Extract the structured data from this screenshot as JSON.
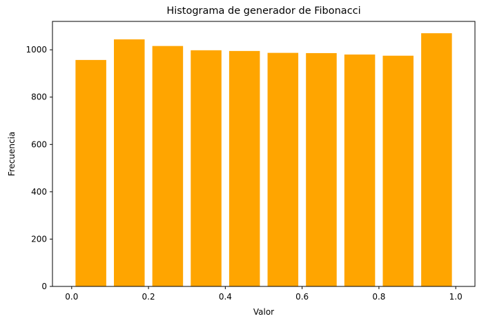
{
  "chart_data": {
    "type": "bar",
    "title": "Histograma de generador de Fibonacci",
    "xlabel": "Valor",
    "ylabel": "Frecuencia",
    "bar_color": "#ffa500",
    "xlim": [
      -0.05,
      1.05
    ],
    "ylim": [
      0,
      1120
    ],
    "xticks": [
      0.0,
      0.2,
      0.4,
      0.6,
      0.8,
      1.0
    ],
    "xtick_labels": [
      "0.0",
      "0.2",
      "0.4",
      "0.6",
      "0.8",
      "1.0"
    ],
    "yticks": [
      0,
      200,
      400,
      600,
      800,
      1000
    ],
    "ytick_labels": [
      "0",
      "200",
      "400",
      "600",
      "800",
      "1000"
    ],
    "bins": [
      {
        "left": 0.0,
        "right": 0.1,
        "value": 957
      },
      {
        "left": 0.1,
        "right": 0.2,
        "value": 1044
      },
      {
        "left": 0.2,
        "right": 0.3,
        "value": 1016
      },
      {
        "left": 0.3,
        "right": 0.4,
        "value": 998
      },
      {
        "left": 0.4,
        "right": 0.5,
        "value": 995
      },
      {
        "left": 0.5,
        "right": 0.6,
        "value": 987
      },
      {
        "left": 0.6,
        "right": 0.7,
        "value": 986
      },
      {
        "left": 0.7,
        "right": 0.8,
        "value": 980
      },
      {
        "left": 0.8,
        "right": 0.9,
        "value": 975
      },
      {
        "left": 0.9,
        "right": 1.0,
        "value": 1070
      }
    ],
    "rwidth": 0.8,
    "grid": false,
    "legend": false
  }
}
